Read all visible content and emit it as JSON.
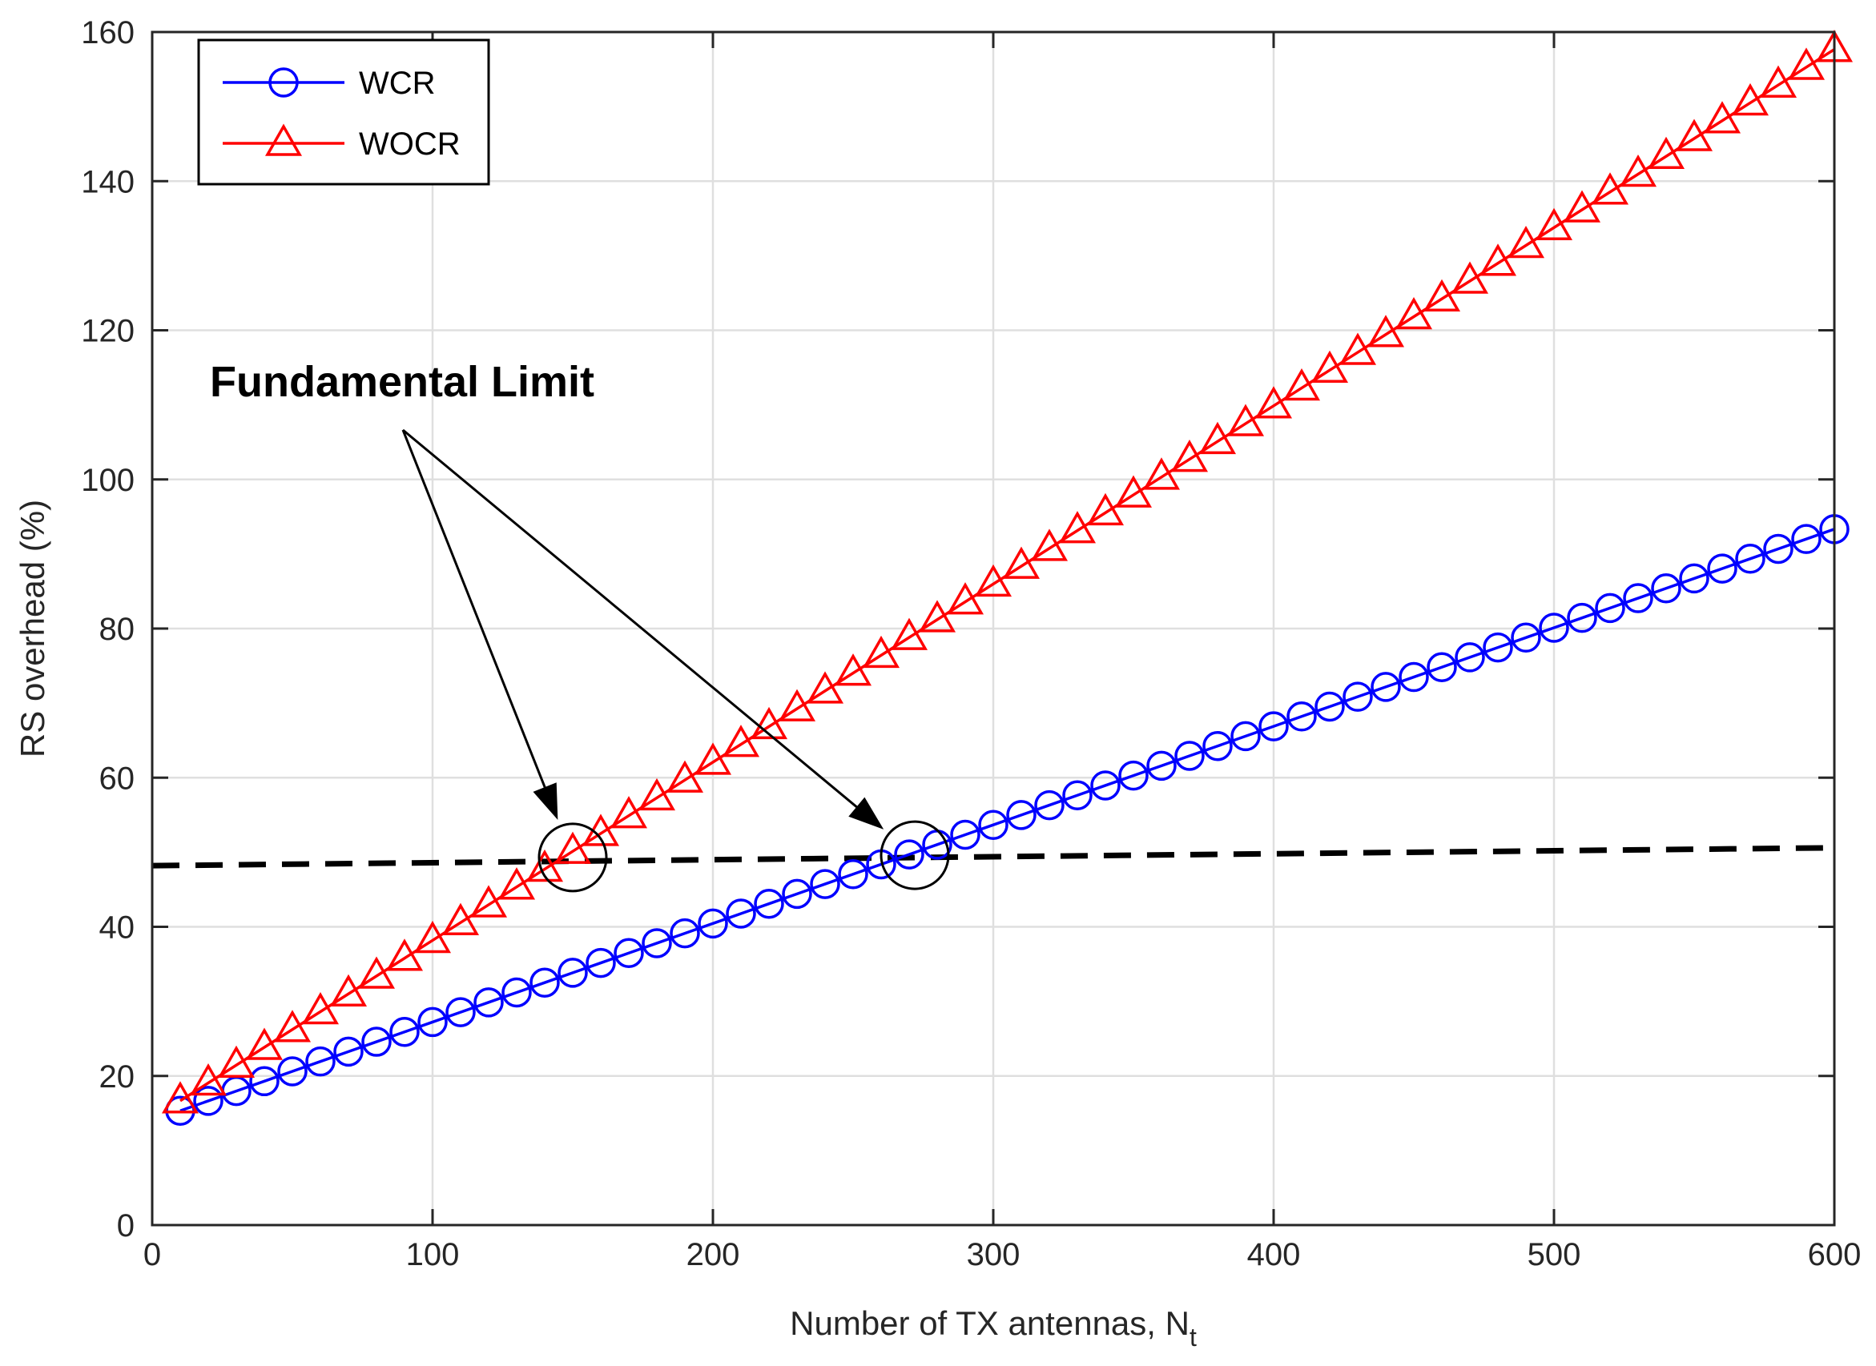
{
  "chart_data": {
    "type": "line",
    "title": "",
    "xlabel": "Number of TX antennas, N",
    "xlabel_subscript": "t",
    "ylabel": "RS overhead (%)",
    "xlim": [
      0,
      600
    ],
    "ylim": [
      0,
      160
    ],
    "xticks": [
      0,
      100,
      200,
      300,
      400,
      500,
      600
    ],
    "yticks": [
      0,
      20,
      40,
      60,
      80,
      100,
      120,
      140,
      160
    ],
    "grid": true,
    "legend_position": "top-left",
    "x": [
      10,
      20,
      30,
      40,
      50,
      60,
      70,
      80,
      90,
      100,
      110,
      120,
      130,
      140,
      150,
      160,
      170,
      180,
      190,
      200,
      210,
      220,
      230,
      240,
      250,
      260,
      270,
      280,
      290,
      300,
      310,
      320,
      330,
      340,
      350,
      360,
      370,
      380,
      390,
      400,
      410,
      420,
      430,
      440,
      450,
      460,
      470,
      480,
      490,
      500,
      510,
      520,
      530,
      540,
      550,
      560,
      570,
      580,
      590,
      600
    ],
    "series": [
      {
        "name": "WCR",
        "color": "#0000ff",
        "marker": "circle",
        "y_start": 15.33,
        "y_end": 93.33
      },
      {
        "name": "WOCR",
        "color": "#ff0000",
        "marker": "triangle",
        "y_start": 16.67,
        "y_end": 157.67
      },
      {
        "name": "Fundamental limit",
        "color": "#000000",
        "style": "dashed",
        "x": [
          0,
          600
        ],
        "y": [
          48.2,
          50.6
        ]
      }
    ],
    "annotation": {
      "text": "Fundamental Limit",
      "targets": [
        {
          "x": 150,
          "y": 49.3
        },
        {
          "x": 272,
          "y": 49.6
        }
      ]
    }
  }
}
